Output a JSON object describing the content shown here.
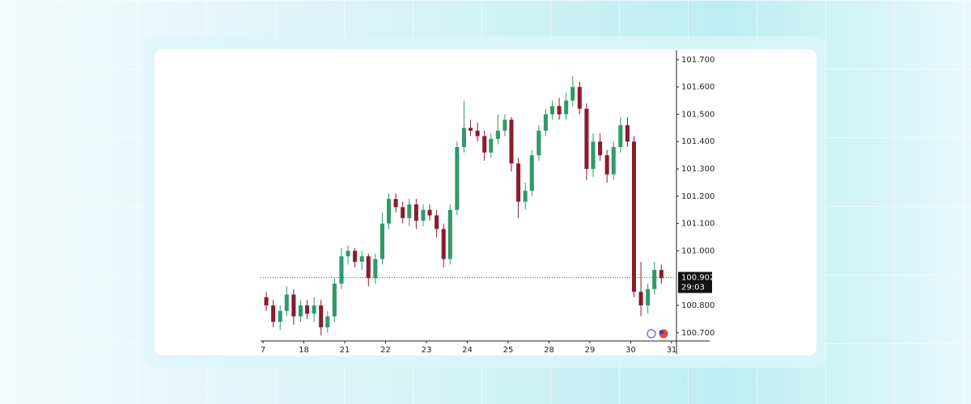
{
  "chart_data": {
    "type": "candlestick",
    "x": [
      0.08,
      0.25,
      0.42,
      0.58,
      0.75,
      0.92,
      1.08,
      1.25,
      1.42,
      1.58,
      1.75,
      1.92,
      2.08,
      2.25,
      2.42,
      2.58,
      2.75,
      2.92,
      3.08,
      3.25,
      3.42,
      3.58,
      3.75,
      3.92,
      4.08,
      4.25,
      4.42,
      4.58,
      4.75,
      4.92,
      5.08,
      5.25,
      5.42,
      5.58,
      5.75,
      5.92,
      6.08,
      6.25,
      6.42,
      6.58,
      6.75,
      6.92,
      7.08,
      7.25,
      7.42,
      7.58,
      7.75,
      7.92,
      8.08,
      8.25,
      8.42,
      8.58,
      8.75,
      8.92,
      9.08,
      9.25,
      9.42,
      9.58,
      9.75
    ],
    "open": [
      100.83,
      100.8,
      100.74,
      100.78,
      100.84,
      100.76,
      100.8,
      100.77,
      100.8,
      100.72,
      100.76,
      100.88,
      100.98,
      101.0,
      100.96,
      100.98,
      100.9,
      100.97,
      101.1,
      101.19,
      101.16,
      101.12,
      101.17,
      101.11,
      101.15,
      101.13,
      101.08,
      100.97,
      101.15,
      101.38,
      101.45,
      101.44,
      101.42,
      101.36,
      101.41,
      101.44,
      101.48,
      101.32,
      101.18,
      101.22,
      101.35,
      101.44,
      101.5,
      101.53,
      101.5,
      101.55,
      101.6,
      101.52,
      101.3,
      101.4,
      101.35,
      101.28,
      101.38,
      101.46,
      101.4,
      100.85,
      100.8,
      100.86,
      100.93
    ],
    "high": [
      100.85,
      100.82,
      100.8,
      100.87,
      100.86,
      100.82,
      100.82,
      100.83,
      100.82,
      100.78,
      100.9,
      101.01,
      101.02,
      101.01,
      101.0,
      100.99,
      100.99,
      101.14,
      101.21,
      101.21,
      101.18,
      101.19,
      101.19,
      101.17,
      101.17,
      101.15,
      101.1,
      101.17,
      101.4,
      101.55,
      101.48,
      101.47,
      101.44,
      101.43,
      101.5,
      101.5,
      101.49,
      101.34,
      101.25,
      101.37,
      101.46,
      101.52,
      101.55,
      101.56,
      101.58,
      101.64,
      101.62,
      101.54,
      101.43,
      101.43,
      101.37,
      101.4,
      101.49,
      101.49,
      101.42,
      100.96,
      100.88,
      100.96,
      100.95
    ],
    "low": [
      100.78,
      100.72,
      100.71,
      100.76,
      100.73,
      100.74,
      100.75,
      100.74,
      100.69,
      100.7,
      100.74,
      100.86,
      100.95,
      100.94,
      100.93,
      100.87,
      100.88,
      100.95,
      101.08,
      101.14,
      101.1,
      101.09,
      101.08,
      101.09,
      101.11,
      101.05,
      100.94,
      100.95,
      101.13,
      101.36,
      101.42,
      101.4,
      101.33,
      101.34,
      101.39,
      101.42,
      101.29,
      101.12,
      101.15,
      101.2,
      101.33,
      101.42,
      101.48,
      101.48,
      101.48,
      101.53,
      101.5,
      101.26,
      101.27,
      101.33,
      101.25,
      101.26,
      101.36,
      101.38,
      100.83,
      100.76,
      100.77,
      100.84,
      100.88
    ],
    "close": [
      100.8,
      100.74,
      100.78,
      100.84,
      100.76,
      100.8,
      100.77,
      100.8,
      100.72,
      100.76,
      100.88,
      100.98,
      101.0,
      100.96,
      100.98,
      100.9,
      100.97,
      101.1,
      101.19,
      101.16,
      101.12,
      101.17,
      101.11,
      101.15,
      101.13,
      101.08,
      100.97,
      101.15,
      101.38,
      101.45,
      101.44,
      101.42,
      101.36,
      101.41,
      101.44,
      101.48,
      101.32,
      101.18,
      101.22,
      101.35,
      101.44,
      101.5,
      101.53,
      101.5,
      101.55,
      101.6,
      101.52,
      101.3,
      101.4,
      101.35,
      101.28,
      101.38,
      101.46,
      101.4,
      100.85,
      100.8,
      100.86,
      100.93,
      100.9
    ],
    "up_color": "#2f9a6a",
    "down_color": "#8a1c2c",
    "xlim": [
      -0.06,
      10.12
    ],
    "xticks": [
      {
        "value": 0,
        "label": "7"
      },
      {
        "value": 1,
        "label": "18"
      },
      {
        "value": 2,
        "label": "21"
      },
      {
        "value": 3,
        "label": "22"
      },
      {
        "value": 4,
        "label": "23"
      },
      {
        "value": 5,
        "label": "24"
      },
      {
        "value": 6,
        "label": "25"
      },
      {
        "value": 7,
        "label": "28"
      },
      {
        "value": 8,
        "label": "29"
      },
      {
        "value": 9,
        "label": "30"
      },
      {
        "value": 10,
        "label": "31"
      }
    ],
    "ylim": [
      100.67,
      101.735
    ],
    "yticks": [
      {
        "value": 100.7,
        "label": "100.700"
      },
      {
        "value": 100.8,
        "label": "100.800"
      },
      {
        "value": 101,
        "label": "101.000"
      },
      {
        "value": 101.1,
        "label": "101.100"
      },
      {
        "value": 101.2,
        "label": "101.200"
      },
      {
        "value": 101.3,
        "label": "101.300"
      },
      {
        "value": 101.4,
        "label": "101.400"
      },
      {
        "value": 101.5,
        "label": "101.500"
      },
      {
        "value": 101.6,
        "label": "101.600"
      },
      {
        "value": 101.7,
        "label": "101.700"
      }
    ],
    "last_price": 100.902,
    "countdown": "29:03"
  }
}
